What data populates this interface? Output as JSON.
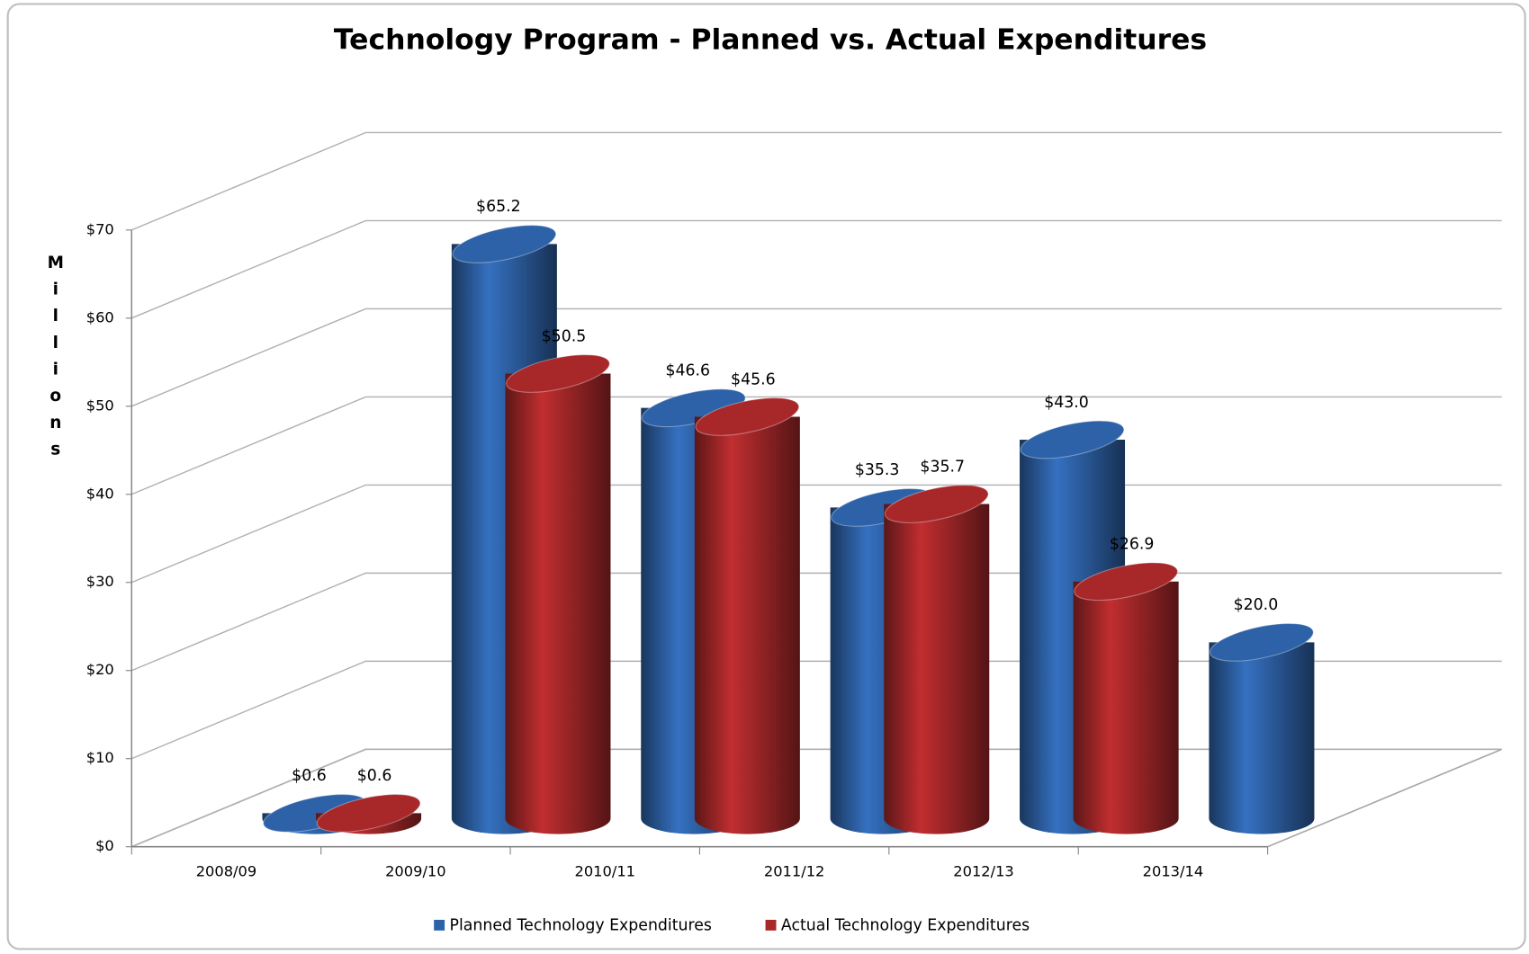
{
  "chart_data": {
    "type": "bar3d",
    "title": "Technology  Program - Planned vs. Actual Expenditures",
    "y_label": "Millions",
    "categories": [
      "2008/09",
      "2009/10",
      "2010/11",
      "2011/12",
      "2012/13",
      "2013/14"
    ],
    "series": [
      {
        "name": "Planned Technology Expenditures",
        "color": "#2e62a8",
        "values": [
          0.6,
          65.2,
          46.6,
          35.3,
          43.0,
          20.0
        ],
        "value_labels": [
          "$0.6",
          "$65.2",
          "$46.6",
          "$35.3",
          "$43.0",
          "$20.0"
        ]
      },
      {
        "name": "Actual Technology Expenditures",
        "color": "#a8282a",
        "values": [
          0.6,
          50.5,
          45.6,
          35.7,
          26.9,
          null
        ],
        "value_labels": [
          "$0.6",
          "$50.5",
          "$45.6",
          "$35.7",
          "$26.9",
          null
        ]
      }
    ],
    "ylim": [
      0,
      70
    ],
    "yticks": [
      {
        "value": 0,
        "label": "$0"
      },
      {
        "value": 10,
        "label": "$10"
      },
      {
        "value": 20,
        "label": "$20"
      },
      {
        "value": 30,
        "label": "$30"
      },
      {
        "value": 40,
        "label": "$40"
      },
      {
        "value": 50,
        "label": "$50"
      },
      {
        "value": 60,
        "label": "$60"
      },
      {
        "value": 70,
        "label": "$70"
      }
    ],
    "grid": true,
    "legend": "bottom"
  }
}
